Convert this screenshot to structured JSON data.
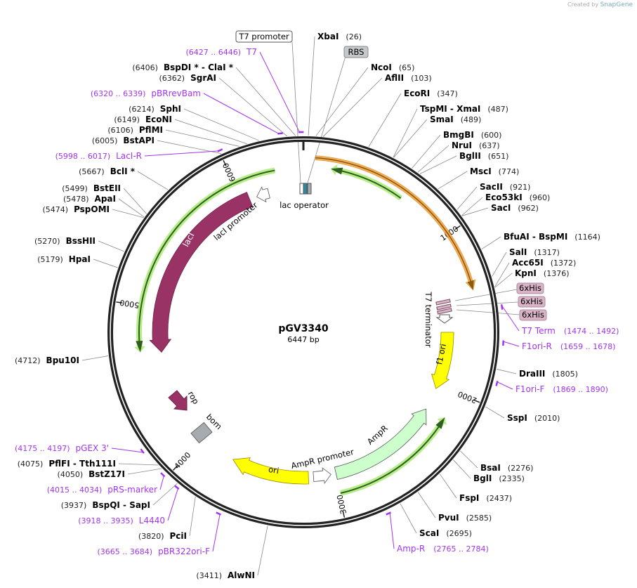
{
  "credit": {
    "prefix": "Created by",
    "brand": "SnapGene"
  },
  "plasmid": {
    "name": "pGV3340",
    "length_label": "6447 bp",
    "length": 6447
  },
  "colors": {
    "primer": "#a334f0",
    "orange": "#f7a23a",
    "orf_green": "#a5e96a",
    "lacI": "#993366",
    "yellow": "#ffff00",
    "ampR": "#ccffcc",
    "gray": "#a6abb0",
    "his": "#d9b3c6"
  },
  "ticks": [
    "1000",
    "2000",
    "3000",
    "4000",
    "5000",
    "6000"
  ],
  "sites": [
    {
      "name": "XbaI",
      "pos": 26
    },
    {
      "name": "NcoI",
      "pos": 65
    },
    {
      "name": "AflII",
      "pos": 103
    },
    {
      "name": "EcoRI",
      "pos": 347
    },
    {
      "name": "TspMI  - XmaI",
      "pos": 487
    },
    {
      "name": "SmaI",
      "pos": 489
    },
    {
      "name": "BmgBI",
      "pos": 600
    },
    {
      "name": "NruI",
      "pos": 637
    },
    {
      "name": "BglII",
      "pos": 651
    },
    {
      "name": "MscI",
      "pos": 774
    },
    {
      "name": "SacII",
      "pos": 921
    },
    {
      "name": "Eco53kI",
      "pos": 960
    },
    {
      "name": "SacI",
      "pos": 962
    },
    {
      "name": "BfuAI  - BspMI",
      "pos": 1164
    },
    {
      "name": "SalI",
      "pos": 1317
    },
    {
      "name": "Acc65I",
      "pos": 1372
    },
    {
      "name": "KpnI",
      "pos": 1376
    },
    {
      "name": "DraIII",
      "pos": 1805
    },
    {
      "name": "SspI",
      "pos": 2010
    },
    {
      "name": "BsaI",
      "pos": 2276
    },
    {
      "name": "BglI",
      "pos": 2335
    },
    {
      "name": "FspI",
      "pos": 2437
    },
    {
      "name": "PvuI",
      "pos": 2585
    },
    {
      "name": "ScaI",
      "pos": 2695
    },
    {
      "name": "AlwNI",
      "pos": 3411
    },
    {
      "name": "PciI",
      "pos": 3820
    },
    {
      "name": "BspQI  - SapI",
      "pos": 3937
    },
    {
      "name": "BstZ17I",
      "pos": 4050
    },
    {
      "name": "PflFI  - Tth111I",
      "pos": 4075
    },
    {
      "name": "Bpu10I",
      "pos": 4712
    },
    {
      "name": "HpaI",
      "pos": 5179
    },
    {
      "name": "BssHII",
      "pos": 5270
    },
    {
      "name": "PspOMI",
      "pos": 5474
    },
    {
      "name": "ApaI",
      "pos": 5478
    },
    {
      "name": "BstEII",
      "pos": 5499
    },
    {
      "name": "BclI *",
      "pos": 5667
    },
    {
      "name": "BstAPI",
      "pos": 6005
    },
    {
      "name": "PflMI",
      "pos": 6106
    },
    {
      "name": "EcoNI",
      "pos": 6149
    },
    {
      "name": "SphI",
      "pos": 6214
    },
    {
      "name": "SgrAI",
      "pos": 6362
    },
    {
      "name": "BspDI *  - ClaI *",
      "pos": 6406
    }
  ],
  "primers": [
    {
      "name": "T7",
      "range": "(6427 .. 6446)",
      "start": 6427
    },
    {
      "name": "pBRrevBam",
      "range": "(6320 .. 6339)",
      "start": 6320
    },
    {
      "name": "LacI-R",
      "range": "(5998 .. 6017)",
      "start": 5998
    },
    {
      "name": "T7 Term",
      "range": "(1474 .. 1492)",
      "start": 1474
    },
    {
      "name": "F1ori-R",
      "range": "(1659 .. 1678)",
      "start": 1659
    },
    {
      "name": "F1ori-F",
      "range": "(1869 .. 1890)",
      "start": 1869
    },
    {
      "name": "Amp-R",
      "range": "(2765 .. 2784)",
      "start": 2765
    },
    {
      "name": "pBR322ori-F",
      "range": "(3665 .. 3684)",
      "start": 3665
    },
    {
      "name": "L4440",
      "range": "(3918 .. 3935)",
      "start": 3918
    },
    {
      "name": "pRS-marker",
      "range": "(4015 .. 4034)",
      "start": 4015
    },
    {
      "name": "pGEX 3'",
      "range": "(4175 .. 4197)",
      "start": 4175
    }
  ],
  "feature_boxes": {
    "t7_promoter": "T7 promoter",
    "rbs": "RBS",
    "his": [
      "6xHis",
      "6xHis",
      "6xHis"
    ]
  },
  "features": {
    "lac_operator": "lac operator",
    "lacI": "lacI",
    "lacI_promoter": "lacI promoter",
    "t7_terminator": "T7 terminator",
    "f1_ori": "f1 ori",
    "ampR": "AmpR",
    "ampR_promoter": "AmpR promoter",
    "ori": "ori",
    "rop": "rop",
    "bom": "bom"
  }
}
